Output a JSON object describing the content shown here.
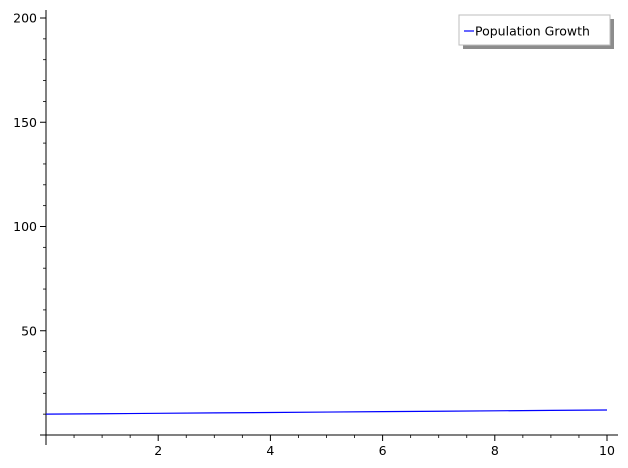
{
  "chart_data": {
    "type": "line",
    "xlim": [
      0,
      10
    ],
    "ylim": [
      0,
      200
    ],
    "x_ticks": [
      2,
      4,
      6,
      8,
      10
    ],
    "y_ticks": [
      50,
      100,
      150,
      200
    ],
    "grid": false,
    "legend_position": "top-right",
    "series": [
      {
        "name": "Population Growth",
        "color": "#0000ff",
        "x": [
          0,
          1,
          2,
          3,
          4,
          5,
          6,
          7,
          8,
          9,
          10
        ],
        "y": [
          10.0,
          10.2,
          10.4,
          10.6,
          10.8,
          11.0,
          11.2,
          11.4,
          11.6,
          11.8,
          12.0
        ]
      }
    ]
  }
}
